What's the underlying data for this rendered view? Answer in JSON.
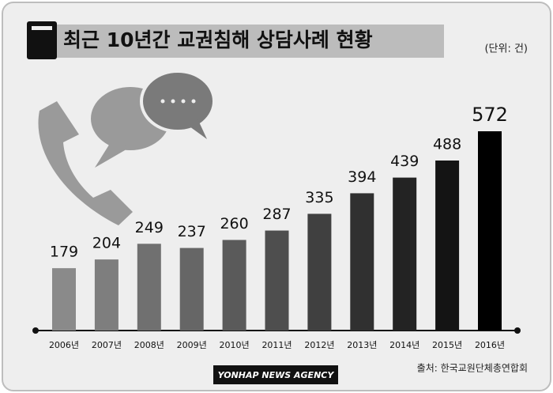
{
  "chart_data": {
    "type": "bar",
    "title": "최근 10년간 교권침해 상담사례 현황",
    "unit": "(단위: 건)",
    "source": "출처: 한국교원단체총연합회",
    "credit": "YONHAP NEWS AGENCY",
    "categories": [
      "2006년",
      "2007년",
      "2008년",
      "2009년",
      "2010년",
      "2011년",
      "2012년",
      "2013년",
      "2014년",
      "2015년",
      "2016년"
    ],
    "values": [
      179,
      204,
      249,
      237,
      260,
      287,
      335,
      394,
      439,
      488,
      572
    ],
    "colors": [
      "#8a8a8a",
      "#7e7e7e",
      "#707070",
      "#666666",
      "#5a5a5a",
      "#4e4e4e",
      "#404040",
      "#303030",
      "#232323",
      "#141414",
      "#000000"
    ]
  }
}
